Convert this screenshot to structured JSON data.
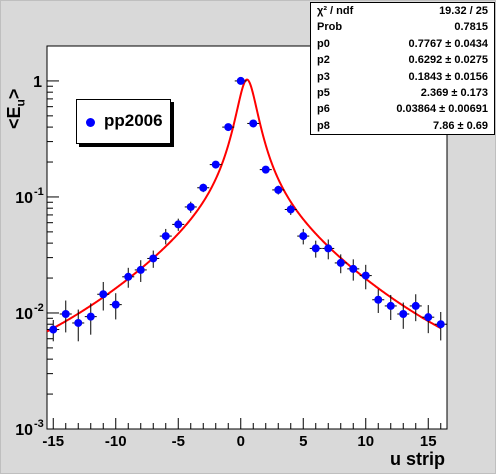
{
  "chart_data": {
    "type": "scatter",
    "title": "",
    "xlabel": "u strip",
    "ylabel_main": "<E",
    "ylabel_sub": "u",
    "ylabel_end": ">",
    "xlim": [
      -15.5,
      16.5
    ],
    "ylim": [
      0.001,
      2
    ],
    "y_scale": "log",
    "x_ticks": [
      -15,
      -10,
      -5,
      0,
      5,
      10,
      15
    ],
    "x_tick_labels": [
      "-15",
      "-10",
      "-5",
      "0",
      "5",
      "10",
      "15"
    ],
    "y_ticks": [
      0.001,
      0.01,
      0.1,
      1
    ],
    "y_tick_base": "10",
    "y_tick_exponents": [
      "-3",
      "-2",
      "-1",
      ""
    ],
    "y_tick_plain": [
      "",
      "",
      "",
      "1"
    ],
    "series": [
      {
        "name": "pp2006",
        "color": "#0000ff",
        "x": [
          -15,
          -14,
          -13,
          -12,
          -11,
          -10,
          -9,
          -8,
          -7,
          -6,
          -5,
          -4,
          -3,
          -2,
          -1,
          0,
          1,
          2,
          3,
          4,
          5,
          6,
          7,
          8,
          9,
          10,
          11,
          12,
          13,
          14,
          15,
          16
        ],
        "y": [
          0.0072,
          0.0098,
          0.0082,
          0.0093,
          0.0145,
          0.0118,
          0.0205,
          0.0235,
          0.0295,
          0.046,
          0.058,
          0.082,
          0.12,
          0.19,
          0.4,
          1.0,
          0.43,
          0.172,
          0.115,
          0.078,
          0.046,
          0.036,
          0.036,
          0.027,
          0.024,
          0.021,
          0.013,
          0.0115,
          0.0098,
          0.0115,
          0.0092,
          0.008
        ],
        "y_err": [
          0.0015,
          0.003,
          0.0025,
          0.0028,
          0.004,
          0.003,
          0.004,
          0.005,
          0.005,
          0.007,
          0.007,
          0.009,
          0.01,
          0.012,
          0.02,
          0.03,
          0.02,
          0.012,
          0.01,
          0.008,
          0.007,
          0.006,
          0.007,
          0.005,
          0.005,
          0.005,
          0.003,
          0.0028,
          0.0025,
          0.003,
          0.0025,
          0.0022
        ]
      }
    ],
    "fit_color": "#ff0000",
    "stats": [
      {
        "name": "χ² / ndf",
        "value": "19.32 / 25"
      },
      {
        "name": "Prob",
        "value": "0.7815"
      },
      {
        "name": "p0",
        "value": "0.7767 ± 0.0434"
      },
      {
        "name": "p2",
        "value": "0.6292 ± 0.0275"
      },
      {
        "name": "p3",
        "value": "0.1843 ± 0.0156"
      },
      {
        "name": "p5",
        "value": "2.369 ± 0.173"
      },
      {
        "name": "p6",
        "value": "0.03864 ± 0.00691"
      },
      {
        "name": "p8",
        "value": "7.86 ± 0.69"
      }
    ],
    "grid": false,
    "legend_position": "top-left"
  }
}
